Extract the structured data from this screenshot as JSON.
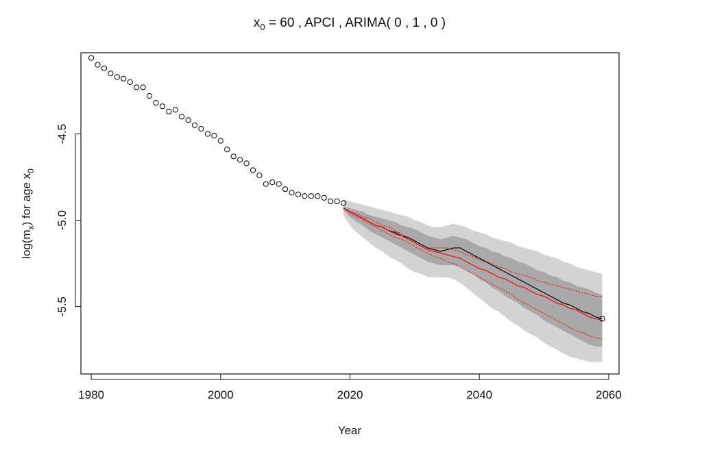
{
  "chart_data": {
    "type": "line",
    "title": {
      "prefix": "x",
      "prefix_sub": "0",
      "rest": " = 60 , APCI , ARIMA( 0 , 1 , 0 )"
    },
    "xlabel": "Year",
    "ylabel": {
      "part1": "log(m",
      "part1_sub": "x",
      "part2": ") for age x",
      "part2_sub": "0"
    },
    "xlim": [
      1978.4,
      2061.6
    ],
    "ylim": [
      -5.89,
      -4.03
    ],
    "x_ticks": [
      1980,
      2000,
      2020,
      2040,
      2060
    ],
    "x_tick_labels": [
      "1980",
      "2000",
      "2020",
      "2040",
      "2060"
    ],
    "y_ticks": [
      -4.5,
      -5.0,
      -5.5
    ],
    "y_tick_labels": [
      "-4.5",
      "-5.0",
      "-5.5"
    ],
    "grid": false,
    "colors": {
      "observed": "#000000",
      "forecast_black": "#000000",
      "forecast_red": "#ff0000",
      "outer_band": "#d3d3d3",
      "inner_band": "#a9a9a9"
    },
    "observed": {
      "name": "observed",
      "x": [
        1980,
        1981,
        1982,
        1983,
        1984,
        1985,
        1986,
        1987,
        1988,
        1989,
        1990,
        1991,
        1992,
        1993,
        1994,
        1995,
        1996,
        1997,
        1998,
        1999,
        2000,
        2001,
        2002,
        2003,
        2004,
        2005,
        2006,
        2007,
        2008,
        2009,
        2010,
        2011,
        2012,
        2013,
        2014,
        2015,
        2016,
        2017,
        2018,
        2019
      ],
      "y": [
        -4.06,
        -4.1,
        -4.12,
        -4.15,
        -4.17,
        -4.18,
        -4.2,
        -4.23,
        -4.23,
        -4.28,
        -4.32,
        -4.34,
        -4.37,
        -4.36,
        -4.4,
        -4.42,
        -4.45,
        -4.47,
        -4.5,
        -4.51,
        -4.54,
        -4.59,
        -4.63,
        -4.65,
        -4.67,
        -4.71,
        -4.74,
        -4.79,
        -4.78,
        -4.79,
        -4.82,
        -4.84,
        -4.85,
        -4.86,
        -4.86,
        -4.86,
        -4.87,
        -4.89,
        -4.89,
        -4.9
      ]
    },
    "forecast_years": [
      2019,
      2020,
      2021,
      2022,
      2023,
      2024,
      2025,
      2026,
      2027,
      2028,
      2029,
      2030,
      2031,
      2032,
      2033,
      2034,
      2035,
      2036,
      2037,
      2038,
      2039,
      2040,
      2041,
      2042,
      2043,
      2044,
      2045,
      2046,
      2047,
      2048,
      2049,
      2050,
      2051,
      2052,
      2053,
      2054,
      2055,
      2056,
      2057,
      2058,
      2059
    ],
    "forecast_black": [
      -4.93,
      -4.95,
      -4.97,
      -4.99,
      -5.01,
      -5.03,
      -5.04,
      -5.06,
      -5.07,
      -5.09,
      -5.1,
      -5.12,
      -5.14,
      -5.16,
      -5.17,
      -5.18,
      -5.17,
      -5.16,
      -5.16,
      -5.18,
      -5.2,
      -5.22,
      -5.24,
      -5.26,
      -5.28,
      -5.3,
      -5.32,
      -5.34,
      -5.36,
      -5.38,
      -5.4,
      -5.42,
      -5.44,
      -5.46,
      -5.48,
      -5.49,
      -5.51,
      -5.53,
      -5.54,
      -5.56,
      -5.57
    ],
    "forecast_red": [
      -4.93,
      -4.95,
      -4.97,
      -4.99,
      -5.01,
      -5.03,
      -5.04,
      -5.06,
      -5.08,
      -5.09,
      -5.11,
      -5.13,
      -5.15,
      -5.17,
      -5.18,
      -5.19,
      -5.2,
      -5.21,
      -5.22,
      -5.24,
      -5.26,
      -5.28,
      -5.29,
      -5.31,
      -5.33,
      -5.34,
      -5.36,
      -5.38,
      -5.39,
      -5.41,
      -5.43,
      -5.44,
      -5.46,
      -5.48,
      -5.49,
      -5.51,
      -5.52,
      -5.54,
      -5.56,
      -5.57,
      -5.58
    ],
    "red_dotted_upper": [
      -4.93,
      -4.95,
      -4.96,
      -4.98,
      -4.99,
      -5.01,
      -5.03,
      -5.04,
      -5.06,
      -5.08,
      -5.1,
      -5.12,
      -5.14,
      -5.16,
      -5.16,
      -5.16,
      -5.16,
      -5.17,
      -5.18,
      -5.2,
      -5.21,
      -5.23,
      -5.24,
      -5.25,
      -5.27,
      -5.28,
      -5.3,
      -5.31,
      -5.32,
      -5.33,
      -5.35,
      -5.36,
      -5.37,
      -5.38,
      -5.39,
      -5.4,
      -5.41,
      -5.42,
      -5.43,
      -5.44,
      -5.44
    ],
    "red_dotted_lower": [
      -4.93,
      -4.96,
      -4.98,
      -5.0,
      -5.02,
      -5.04,
      -5.06,
      -5.08,
      -5.1,
      -5.11,
      -5.13,
      -5.15,
      -5.17,
      -5.19,
      -5.21,
      -5.22,
      -5.24,
      -5.25,
      -5.27,
      -5.29,
      -5.31,
      -5.33,
      -5.35,
      -5.37,
      -5.39,
      -5.41,
      -5.43,
      -5.46,
      -5.48,
      -5.5,
      -5.52,
      -5.54,
      -5.56,
      -5.58,
      -5.6,
      -5.62,
      -5.64,
      -5.65,
      -5.67,
      -5.68,
      -5.69
    ],
    "inner_band_upper": [
      -4.92,
      -4.93,
      -4.94,
      -4.95,
      -4.97,
      -4.98,
      -4.99,
      -5.0,
      -5.01,
      -5.03,
      -5.04,
      -5.05,
      -5.07,
      -5.09,
      -5.1,
      -5.11,
      -5.1,
      -5.09,
      -5.1,
      -5.11,
      -5.13,
      -5.15,
      -5.16,
      -5.18,
      -5.19,
      -5.21,
      -5.22,
      -5.24,
      -5.25,
      -5.27,
      -5.29,
      -5.3,
      -5.32,
      -5.33,
      -5.35,
      -5.36,
      -5.38,
      -5.39,
      -5.4,
      -5.42,
      -5.43
    ],
    "inner_band_lower": [
      -4.94,
      -4.98,
      -5.01,
      -5.03,
      -5.06,
      -5.08,
      -5.1,
      -5.12,
      -5.14,
      -5.16,
      -5.18,
      -5.2,
      -5.22,
      -5.24,
      -5.25,
      -5.26,
      -5.26,
      -5.26,
      -5.27,
      -5.29,
      -5.31,
      -5.34,
      -5.36,
      -5.39,
      -5.41,
      -5.44,
      -5.46,
      -5.48,
      -5.51,
      -5.53,
      -5.55,
      -5.58,
      -5.6,
      -5.62,
      -5.64,
      -5.66,
      -5.68,
      -5.7,
      -5.72,
      -5.73,
      -5.73
    ],
    "outer_band_upper": [
      -4.88,
      -4.89,
      -4.9,
      -4.91,
      -4.92,
      -4.93,
      -4.94,
      -4.95,
      -4.96,
      -4.97,
      -4.98,
      -5.0,
      -5.01,
      -5.03,
      -5.04,
      -5.04,
      -5.03,
      -5.02,
      -5.03,
      -5.04,
      -5.06,
      -5.07,
      -5.08,
      -5.1,
      -5.11,
      -5.12,
      -5.13,
      -5.15,
      -5.16,
      -5.17,
      -5.18,
      -5.2,
      -5.21,
      -5.22,
      -5.24,
      -5.25,
      -5.27,
      -5.28,
      -5.29,
      -5.3,
      -5.31
    ],
    "outer_band_lower": [
      -4.97,
      -5.03,
      -5.07,
      -5.1,
      -5.13,
      -5.16,
      -5.18,
      -5.21,
      -5.23,
      -5.25,
      -5.28,
      -5.3,
      -5.31,
      -5.33,
      -5.33,
      -5.33,
      -5.33,
      -5.34,
      -5.36,
      -5.39,
      -5.42,
      -5.45,
      -5.48,
      -5.51,
      -5.53,
      -5.56,
      -5.59,
      -5.61,
      -5.64,
      -5.66,
      -5.68,
      -5.71,
      -5.73,
      -5.75,
      -5.77,
      -5.79,
      -5.8,
      -5.81,
      -5.82,
      -5.82,
      -5.82
    ]
  }
}
